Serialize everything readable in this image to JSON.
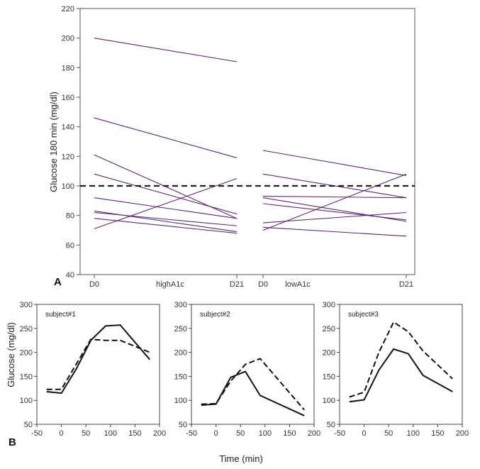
{
  "chart_data": [
    {
      "panel": "A",
      "type": "line",
      "ylabel": "Glucose 180 min (mg/dl)",
      "ylim": [
        40,
        220
      ],
      "yticks": [
        40,
        60,
        80,
        100,
        120,
        140,
        160,
        180,
        200,
        220
      ],
      "reference_line": {
        "y": 100,
        "style": "dashed"
      },
      "line_color": "#5b2a6e",
      "groups": [
        {
          "name": "highA1c",
          "x_labels": [
            "D0",
            "D21"
          ],
          "pairs": [
            [
              200,
              184
            ],
            [
              146,
              119
            ],
            [
              121,
              78
            ],
            [
              108,
              81
            ],
            [
              92,
              78
            ],
            [
              83,
              69
            ],
            [
              82,
              73
            ],
            [
              78,
              68
            ],
            [
              71,
              105
            ]
          ]
        },
        {
          "name": "lowA1c",
          "x_labels": [
            "D0",
            "D21"
          ],
          "pairs": [
            [
              124,
              107
            ],
            [
              108,
              92
            ],
            [
              93,
              92
            ],
            [
              92,
              76
            ],
            [
              88,
              77
            ],
            [
              75,
              82
            ],
            [
              72,
              66
            ],
            [
              70,
              108
            ]
          ]
        }
      ]
    },
    {
      "panel": "B",
      "type": "line",
      "xlabel": "Time (min)",
      "ylabel": "Glucose (mg/dl)",
      "xlim": [
        -50,
        200
      ],
      "ylim": [
        50,
        300
      ],
      "xticks": [
        -50,
        0,
        50,
        100,
        150,
        200
      ],
      "yticks": [
        50,
        100,
        150,
        200,
        250,
        300
      ],
      "subjects": [
        {
          "name": "subject#1",
          "series": [
            {
              "name": "solid",
              "style": "solid",
              "x": [
                -30,
                0,
                30,
                60,
                90,
                120,
                180
              ],
              "y": [
                118,
                115,
                165,
                225,
                255,
                257,
                185
              ]
            },
            {
              "name": "dashed",
              "style": "dashed",
              "x": [
                -30,
                0,
                30,
                60,
                90,
                120,
                180
              ],
              "y": [
                123,
                123,
                175,
                227,
                225,
                225,
                200
              ]
            }
          ]
        },
        {
          "name": "subject#2",
          "series": [
            {
              "name": "solid",
              "style": "solid",
              "x": [
                -30,
                0,
                30,
                60,
                90,
                180
              ],
              "y": [
                90,
                92,
                148,
                160,
                110,
                68
              ]
            },
            {
              "name": "dashed",
              "style": "dashed",
              "x": [
                -30,
                0,
                30,
                60,
                90,
                180
              ],
              "y": [
                92,
                93,
                140,
                175,
                187,
                80
              ]
            }
          ]
        },
        {
          "name": "subject#3",
          "series": [
            {
              "name": "solid",
              "style": "solid",
              "x": [
                -30,
                0,
                30,
                60,
                90,
                120,
                180
              ],
              "y": [
                97,
                101,
                163,
                207,
                197,
                152,
                118
              ]
            },
            {
              "name": "dashed",
              "style": "dashed",
              "x": [
                -30,
                0,
                30,
                60,
                90,
                120,
                180
              ],
              "y": [
                107,
                117,
                200,
                263,
                243,
                203,
                145
              ]
            }
          ]
        }
      ]
    }
  ]
}
